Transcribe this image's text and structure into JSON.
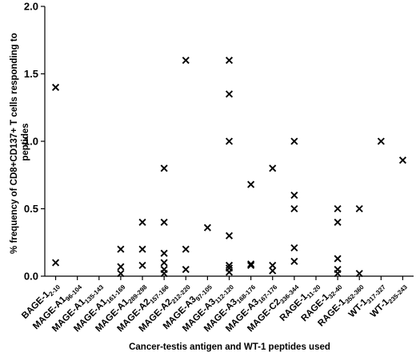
{
  "chart_data": {
    "type": "scatter",
    "marker": "x",
    "xlabel": "Cancer-testis antigen and WT-1 peptides used",
    "ylabel": "% frequency of CD8+CD137+ T cells responding to peptides",
    "ylim": [
      0,
      2.0
    ],
    "yticks": [
      "0.0",
      "0.5",
      "1.0",
      "1.5",
      "2.0"
    ],
    "grid": false,
    "categories": [
      {
        "base": "BAGE-1",
        "sub": "2-10"
      },
      {
        "base": "MAGE-A1",
        "sub": "96-104"
      },
      {
        "base": "MAGE-A1",
        "sub": "135-143"
      },
      {
        "base": "MAGE-A1",
        "sub": "161-169"
      },
      {
        "base": "MAGE-A1",
        "sub": "289-298"
      },
      {
        "base": "MAGE-A2",
        "sub": "157-166"
      },
      {
        "base": "MAGE-A2",
        "sub": "212-220"
      },
      {
        "base": "MAGE-A3",
        "sub": "97-105"
      },
      {
        "base": "MAGE-A3",
        "sub": "112-120"
      },
      {
        "base": "MAGE-A3",
        "sub": "168-176"
      },
      {
        "base": "MAGE-A3",
        "sub": "167-176"
      },
      {
        "base": "MAGE-C2",
        "sub": "336-344"
      },
      {
        "base": "RAGE-1",
        "sub": "11-20"
      },
      {
        "base": "RAGE-1",
        "sub": "32-40"
      },
      {
        "base": "RAGE-1",
        "sub": "352-360"
      },
      {
        "base": "WT-1",
        "sub": "317-327"
      },
      {
        "base": "WT-1",
        "sub": "235-243"
      }
    ],
    "points": [
      [
        0,
        1.4
      ],
      [
        0,
        0.1
      ],
      [
        3,
        0.2
      ],
      [
        3,
        0.07
      ],
      [
        3,
        0.02
      ],
      [
        4,
        0.4
      ],
      [
        4,
        0.2
      ],
      [
        4,
        0.08
      ],
      [
        5,
        0.8
      ],
      [
        5,
        0.4
      ],
      [
        5,
        0.17
      ],
      [
        5,
        0.1
      ],
      [
        5,
        0.05
      ],
      [
        5,
        0.02
      ],
      [
        6,
        1.6
      ],
      [
        6,
        0.2
      ],
      [
        6,
        0.05
      ],
      [
        7,
        0.36
      ],
      [
        8,
        1.6
      ],
      [
        8,
        1.35
      ],
      [
        8,
        1.0
      ],
      [
        8,
        0.3
      ],
      [
        8,
        0.08
      ],
      [
        8,
        0.06
      ],
      [
        8,
        0.03
      ],
      [
        9,
        0.68
      ],
      [
        9,
        0.09
      ],
      [
        9,
        0.08
      ],
      [
        10,
        0.8
      ],
      [
        10,
        0.08
      ],
      [
        10,
        0.04
      ],
      [
        11,
        1.0
      ],
      [
        11,
        0.6
      ],
      [
        11,
        0.5
      ],
      [
        11,
        0.21
      ],
      [
        11,
        0.11
      ],
      [
        13,
        0.5
      ],
      [
        13,
        0.4
      ],
      [
        13,
        0.13
      ],
      [
        13,
        0.05
      ],
      [
        13,
        0.02
      ],
      [
        14,
        0.5
      ],
      [
        14,
        0.02
      ],
      [
        15,
        1.0
      ],
      [
        16,
        0.86
      ]
    ]
  }
}
